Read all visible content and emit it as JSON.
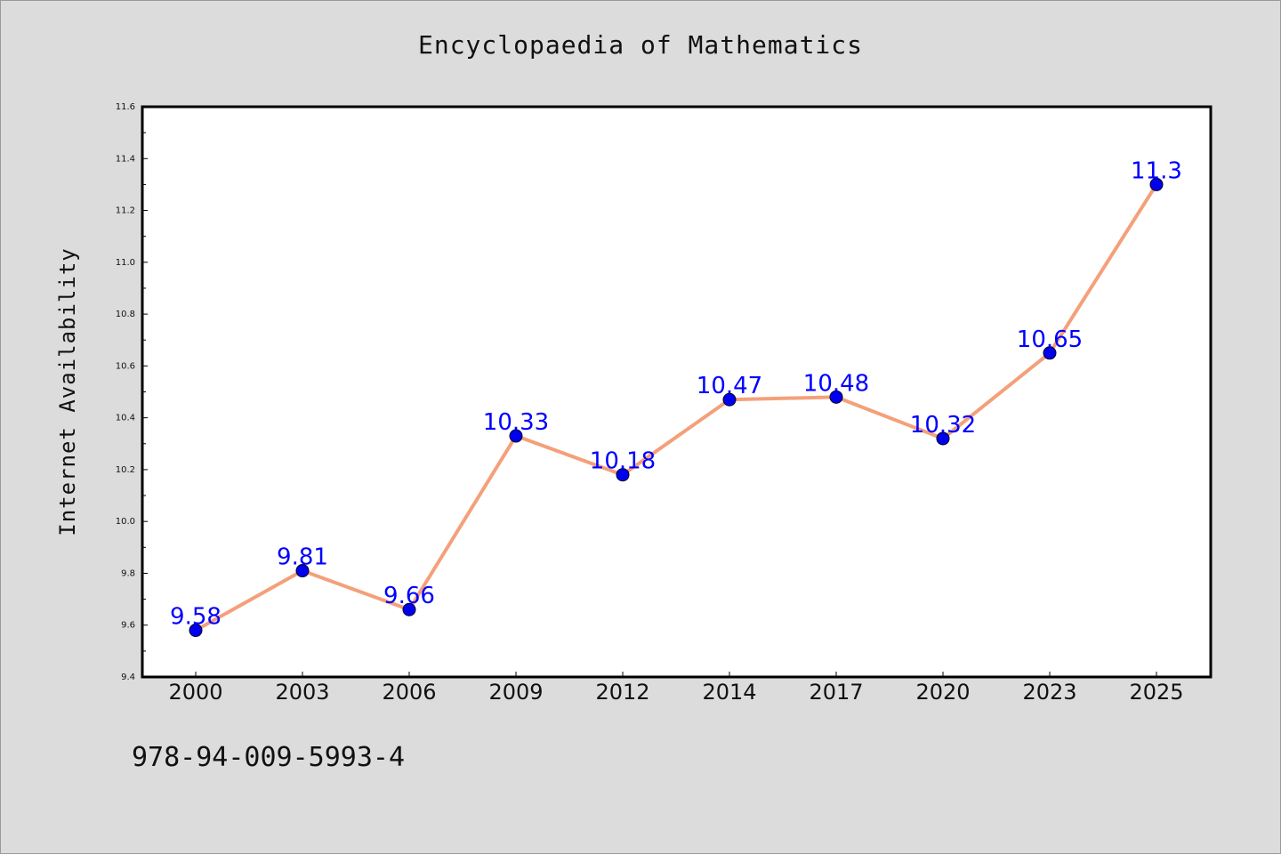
{
  "chart_data": {
    "type": "line",
    "title": "Encyclopaedia of Mathematics",
    "xlabel": "",
    "ylabel": "Internet Availability",
    "categories": [
      "2000",
      "2003",
      "2006",
      "2009",
      "2012",
      "2014",
      "2017",
      "2020",
      "2023",
      "2025"
    ],
    "series": [
      {
        "values": [
          9.58,
          9.81,
          9.66,
          10.33,
          10.18,
          10.47,
          10.48,
          10.32,
          10.65,
          11.3
        ],
        "labels": [
          "9.58",
          "9.81",
          "9.66",
          "10.33",
          "10.18",
          "10.47",
          "10.48",
          "10.32",
          "10.65",
          "11.3"
        ]
      }
    ],
    "ylim": [
      9.4,
      11.6
    ],
    "yticks": [
      "9.4",
      "9.6",
      "9.8",
      "10.0",
      "10.2",
      "10.4",
      "10.6",
      "10.8",
      "11.0",
      "11.2",
      "11.4",
      "11.6"
    ],
    "grid": false,
    "colors": {
      "line": "#f4a07a",
      "marker": "#0000ee",
      "label": "#0000ff",
      "background": "#dcdcdc",
      "plot_area": "#ffffff"
    }
  },
  "footer": {
    "code": "978-94-009-5993-4"
  }
}
